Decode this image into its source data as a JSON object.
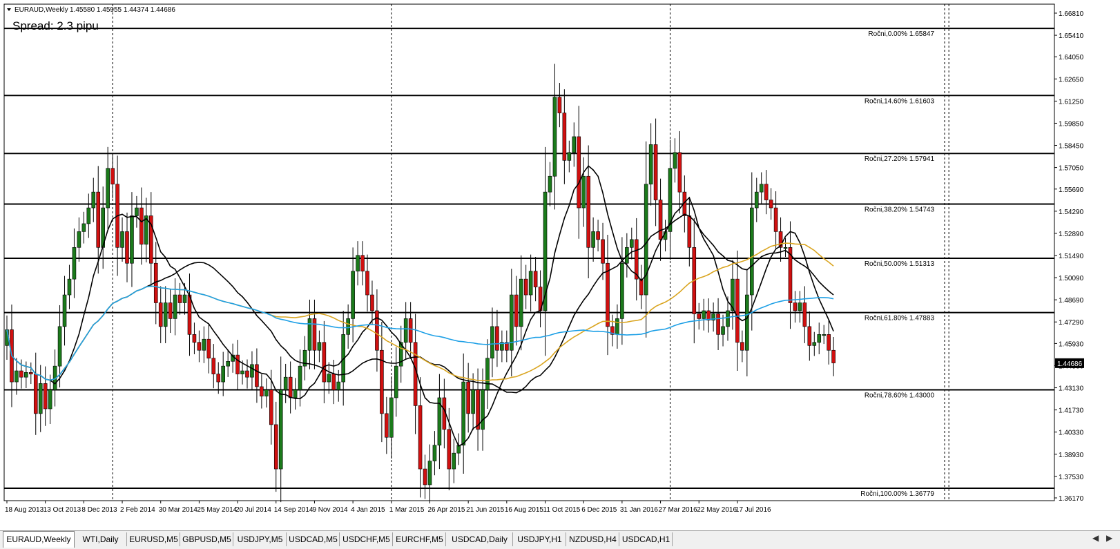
{
  "header": {
    "symbol": "EURAUD,Weekly",
    "ohlc": "1.45580 1.45955 1.44374 1.44686",
    "spread": "Spread: 2.3 pipu"
  },
  "chart_data": {
    "type": "candlestick",
    "timeframe": "Weekly",
    "ylim": [
      1.3617,
      1.6681
    ],
    "price_ticks": [
      "1.66810",
      "1.65410",
      "1.64050",
      "1.62650",
      "1.61250",
      "1.59850",
      "1.58450",
      "1.57050",
      "1.55690",
      "1.54290",
      "1.52890",
      "1.51490",
      "1.50090",
      "1.48690",
      "1.47290",
      "1.45930",
      "1.44530",
      "1.43130",
      "1.41730",
      "1.40330",
      "1.38930",
      "1.37530",
      "1.36170"
    ],
    "current_price": "1.44686",
    "date_ticks": [
      "18 Aug 2013",
      "13 Oct 2013",
      "8 Dec 2013",
      "2 Feb 2014",
      "30 Mar 2014",
      "25 May 2014",
      "20 Jul 2014",
      "14 Sep 2014",
      "9 Nov 2014",
      "4 Jan 2015",
      "1 Mar 2015",
      "26 Apr 2015",
      "21 Jun 2015",
      "16 Aug 2015",
      "11 Oct 2015",
      "6 Dec 2015",
      "31 Jan 2016",
      "27 Mar 2016",
      "22 May 2016",
      "17 Jul 2016"
    ],
    "fib_levels": [
      {
        "label": "Ročni,0.00% 1.65847",
        "price": 1.65847
      },
      {
        "label": "Ročni,14.60% 1.61603",
        "price": 1.61603
      },
      {
        "label": "Ročni,27.20% 1.57941",
        "price": 1.57941
      },
      {
        "label": "Ročni,38.20% 1.54743",
        "price": 1.54743
      },
      {
        "label": "Ročni,50.00% 1.51313",
        "price": 1.51313
      },
      {
        "label": "Ročni,61.80% 1.47883",
        "price": 1.47883
      },
      {
        "label": "Ročni,78.60% 1.43000",
        "price": 1.43
      },
      {
        "label": "Ročni,100.00% 1.36779",
        "price": 1.36779
      }
    ],
    "closes": [
      1.468,
      1.435,
      1.442,
      1.438,
      1.441,
      1.44,
      1.415,
      1.434,
      1.418,
      1.43,
      1.445,
      1.47,
      1.49,
      1.5,
      1.52,
      1.53,
      1.535,
      1.545,
      1.555,
      1.52,
      1.545,
      1.57,
      1.56,
      1.52,
      1.53,
      1.51,
      1.54,
      1.545,
      1.522,
      1.54,
      1.51,
      1.485,
      1.47,
      1.485,
      1.475,
      1.49,
      1.485,
      1.49,
      1.465,
      1.46,
      1.455,
      1.462,
      1.45,
      1.44,
      1.435,
      1.445,
      1.448,
      1.452,
      1.44,
      1.442,
      1.438,
      1.446,
      1.432,
      1.426,
      1.43,
      1.408,
      1.38,
      1.43,
      1.438,
      1.425,
      1.43,
      1.445,
      1.455,
      1.475,
      1.455,
      1.46,
      1.435,
      1.44,
      1.43,
      1.435,
      1.465,
      1.475,
      1.505,
      1.515,
      1.505,
      1.49,
      1.48,
      1.455,
      1.415,
      1.4,
      1.425,
      1.445,
      1.46,
      1.475,
      1.46,
      1.42,
      1.38,
      1.37,
      1.385,
      1.395,
      1.425,
      1.405,
      1.38,
      1.39,
      1.395,
      1.435,
      1.415,
      1.43,
      1.405,
      1.43,
      1.45,
      1.47,
      1.455,
      1.46,
      1.455,
      1.49,
      1.47,
      1.5,
      1.49,
      1.505,
      1.495,
      1.48,
      1.555,
      1.565,
      1.615,
      1.605,
      1.575,
      1.58,
      1.59,
      1.545,
      1.565,
      1.52,
      1.53,
      1.525,
      1.51,
      1.47,
      1.465,
      1.475,
      1.51,
      1.52,
      1.525,
      1.5,
      1.49,
      1.56,
      1.585,
      1.55,
      1.525,
      1.53,
      1.57,
      1.58,
      1.555,
      1.54,
      1.52,
      1.478,
      1.475,
      1.48,
      1.474,
      1.478,
      1.465,
      1.47,
      1.48,
      1.5,
      1.46,
      1.455,
      1.49,
      1.545,
      1.555,
      1.56,
      1.55,
      1.545,
      1.53,
      1.52,
      1.52,
      1.485,
      1.48,
      1.485,
      1.47,
      1.458,
      1.46,
      1.465,
      1.465,
      1.455,
      1.447
    ],
    "moving_averages": [
      {
        "color": "#000000",
        "period": 10
      },
      {
        "color": "#000000",
        "period": 30
      },
      {
        "color": "#daa520",
        "period": 55
      },
      {
        "color": "#1ea0e6",
        "period": 100
      }
    ]
  },
  "tabs": [
    "EURAUD,Weekly",
    "WTI,Daily",
    "EURUSD,M5",
    "GBPUSD,M5",
    "USDJPY,M5",
    "USDCAD,M5",
    "USDCHF,M5",
    "EURCHF,M5",
    "USDCAD,Daily",
    "USDJPY,H1",
    "NZDUSD,H4",
    "USDCAD,H1"
  ],
  "active_tab": "EURAUD,Weekly",
  "colors": {
    "bull": "#1b7a1b",
    "bear": "#d01010",
    "fib": "#000000",
    "grid": "#000000",
    "price_tag": "#000000"
  }
}
